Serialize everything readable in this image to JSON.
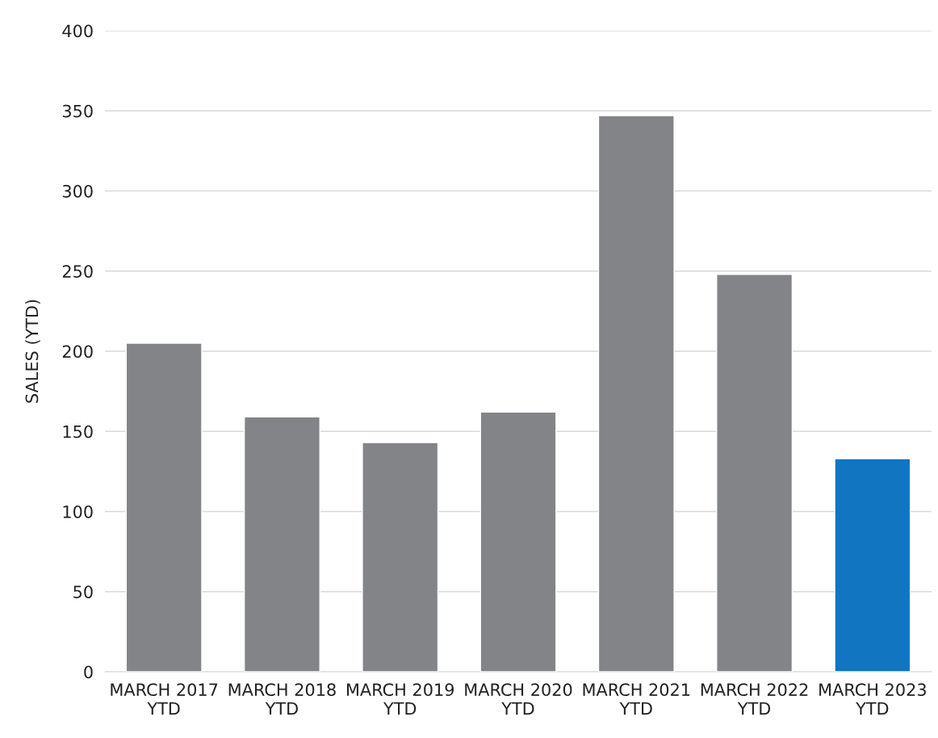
{
  "chart_data": {
    "type": "bar",
    "ylabel": "SALES (YTD)",
    "categories": [
      "MARCH 2017\nYTD",
      "MARCH 2018\nYTD",
      "MARCH 2019\nYTD",
      "MARCH 2020\nYTD",
      "MARCH 2021\nYTD",
      "MARCH 2022\nYTD",
      "MARCH 2023\nYTD"
    ],
    "values": [
      205,
      159,
      143,
      162,
      347,
      248,
      133
    ],
    "colors": [
      "#838487",
      "#838487",
      "#838487",
      "#838487",
      "#838487",
      "#838487",
      "#1175c1"
    ],
    "ylim": [
      0,
      400
    ],
    "yticks": [
      0,
      50,
      100,
      150,
      200,
      250,
      300,
      350,
      400
    ],
    "grid": "y"
  }
}
